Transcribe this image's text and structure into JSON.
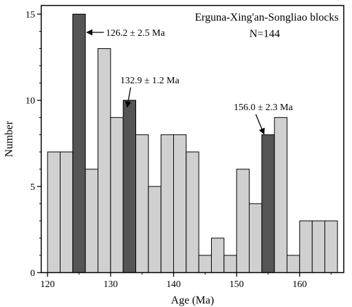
{
  "chart_data": {
    "type": "bar",
    "title": "Erguna-Xing'an-Songliao blocks",
    "subtitle": "N=144",
    "xlabel": "Age (Ma)",
    "ylabel": "Number",
    "xlim": [
      119,
      167
    ],
    "ylim": [
      0,
      15.5
    ],
    "bin_width": 2,
    "x_ticks": [
      120,
      130,
      140,
      150,
      160
    ],
    "y_ticks": [
      0,
      5,
      10,
      15
    ],
    "bins": [
      {
        "start": 120,
        "count": 7,
        "highlight": false
      },
      {
        "start": 122,
        "count": 7,
        "highlight": false
      },
      {
        "start": 124,
        "count": 15,
        "highlight": true
      },
      {
        "start": 126,
        "count": 6,
        "highlight": false
      },
      {
        "start": 128,
        "count": 13,
        "highlight": false
      },
      {
        "start": 130,
        "count": 9,
        "highlight": false
      },
      {
        "start": 132,
        "count": 10,
        "highlight": true
      },
      {
        "start": 134,
        "count": 8,
        "highlight": false
      },
      {
        "start": 136,
        "count": 5,
        "highlight": false
      },
      {
        "start": 138,
        "count": 8,
        "highlight": false
      },
      {
        "start": 140,
        "count": 8,
        "highlight": false
      },
      {
        "start": 142,
        "count": 7,
        "highlight": false
      },
      {
        "start": 144,
        "count": 1,
        "highlight": false
      },
      {
        "start": 146,
        "count": 2,
        "highlight": false
      },
      {
        "start": 148,
        "count": 1,
        "highlight": false
      },
      {
        "start": 150,
        "count": 6,
        "highlight": false
      },
      {
        "start": 152,
        "count": 4,
        "highlight": false
      },
      {
        "start": 154,
        "count": 8,
        "highlight": true
      },
      {
        "start": 156,
        "count": 9,
        "highlight": false
      },
      {
        "start": 158,
        "count": 1,
        "highlight": false
      },
      {
        "start": 160,
        "count": 3,
        "highlight": false
      },
      {
        "start": 162,
        "count": 3,
        "highlight": false
      },
      {
        "start": 164,
        "count": 3,
        "highlight": false
      }
    ],
    "annotations": [
      {
        "text": "126.2 ± 2.5 Ma",
        "target_age": 126.2,
        "target_count": 15
      },
      {
        "text": "132.9 ± 1.2 Ma",
        "target_age": 132.9,
        "target_count": 10
      },
      {
        "text": "156.0 ± 2.3 Ma",
        "target_age": 156.0,
        "target_count": 8
      }
    ],
    "colors": {
      "bar": "#d0d0d0",
      "bar_highlight": "#555555",
      "bar_edge": "#000000"
    },
    "grid": false
  }
}
